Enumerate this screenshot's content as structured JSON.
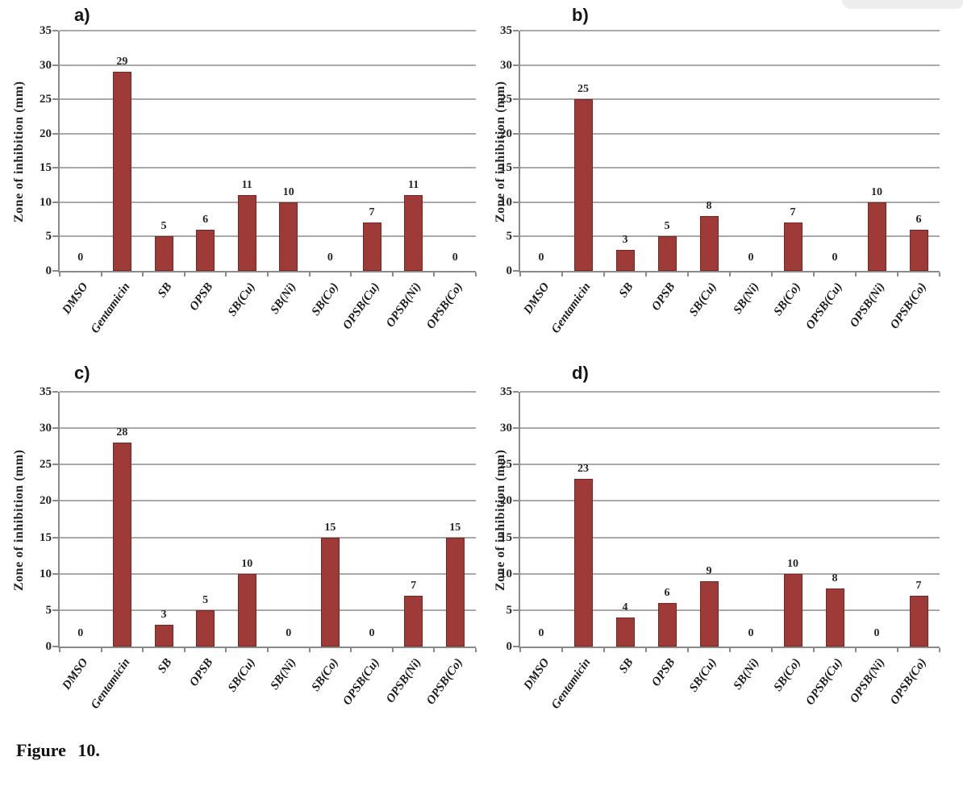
{
  "figure": {
    "caption": "Figure 10."
  },
  "axis": {
    "ylabel": "Zone of inhibition (mm)",
    "yticks": [
      0,
      5,
      10,
      15,
      20,
      25,
      30,
      35
    ],
    "ymin": 0,
    "ymax": 35
  },
  "colors": {
    "bar_fill": "#9e3b39",
    "bar_border": "#762523",
    "gridline": "#a9a9a9",
    "axis_line": "#8a8a8a",
    "text": "#262626"
  },
  "chart_data": [
    {
      "type": "bar",
      "panel": "a)",
      "title": "a)",
      "ylabel": "Zone of inhibition (mm)",
      "ylim": [
        0,
        35
      ],
      "grid": true,
      "legend": "none",
      "categories": [
        "DMSO",
        "Gentamicin",
        "SB",
        "OPSB",
        "SB(Cu)",
        "SB(Ni)",
        "SB(Co)",
        "OPSB(Cu)",
        "OPSB(Ni)",
        "OPSB(Co)"
      ],
      "values": [
        0,
        29,
        5,
        6,
        11,
        10,
        0,
        7,
        11,
        0
      ]
    },
    {
      "type": "bar",
      "panel": "b)",
      "title": "b)",
      "ylabel": "Zone of inhibition (mm)",
      "ylim": [
        0,
        35
      ],
      "grid": true,
      "legend": "none",
      "categories": [
        "DMSO",
        "Gentamicin",
        "SB",
        "OPSB",
        "SB(Cu)",
        "SB(Ni)",
        "SB(Co)",
        "OPSB(Cu)",
        "OPSB(Ni)",
        "OPSB(Co)"
      ],
      "values": [
        0,
        25,
        3,
        5,
        8,
        0,
        7,
        0,
        10,
        6
      ]
    },
    {
      "type": "bar",
      "panel": "c)",
      "title": "c)",
      "ylabel": "Zone of inhibition (mm)",
      "ylim": [
        0,
        35
      ],
      "grid": true,
      "legend": "none",
      "categories": [
        "DMSO",
        "Gentamicin",
        "SB",
        "OPSB",
        "SB(Cu)",
        "SB(Ni)",
        "SB(Co)",
        "OPSB(Cu)",
        "OPSB(Ni)",
        "OPSB(Co)"
      ],
      "values": [
        0,
        28,
        3,
        5,
        10,
        0,
        15,
        0,
        7,
        15
      ]
    },
    {
      "type": "bar",
      "panel": "d)",
      "title": "d)",
      "ylabel": "Zone of inhibition (mm)",
      "ylim": [
        0,
        35
      ],
      "grid": true,
      "legend": "none",
      "categories": [
        "DMSO",
        "Gentamicin",
        "SB",
        "OPSB",
        "SB(Cu)",
        "SB(Ni)",
        "SB(Co)",
        "OPSB(Cu)",
        "OPSB(Ni)",
        "OPSB(Co)"
      ],
      "values": [
        0,
        23,
        4,
        6,
        9,
        0,
        10,
        8,
        0,
        7
      ]
    }
  ]
}
